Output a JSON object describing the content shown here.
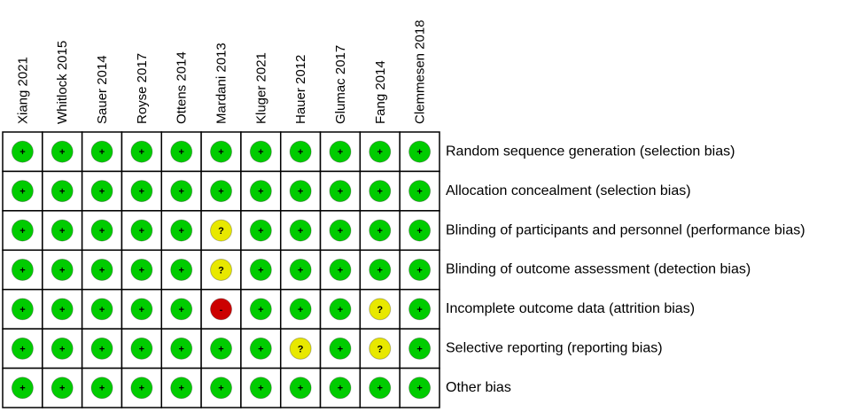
{
  "studies": [
    "Xiang 2021",
    "Whitlock 2015",
    "Sauer 2014",
    "Royse 2017",
    "Ottens 2014",
    "Mardani 2013",
    "Kluger 2021",
    "Hauer 2012",
    "Glumac 2017",
    "Fang 2014",
    "Clemmesen 2018"
  ],
  "domains": [
    "Random sequence generation (selection bias)",
    "Allocation concealment (selection bias)",
    "Blinding of participants and personnel (performance bias)",
    "Blinding of outcome assessment (detection bias)",
    "Incomplete outcome data (attrition bias)",
    "Selective reporting (reporting bias)",
    "Other bias"
  ],
  "judgments": [
    [
      "+",
      "+",
      "+",
      "+",
      "+",
      "+",
      "+",
      "+",
      "+",
      "+",
      "+"
    ],
    [
      "+",
      "+",
      "+",
      "+",
      "+",
      "+",
      "+",
      "+",
      "+",
      "+",
      "+"
    ],
    [
      "+",
      "+",
      "+",
      "+",
      "+",
      "?",
      "+",
      "+",
      "+",
      "+",
      "+"
    ],
    [
      "+",
      "+",
      "+",
      "+",
      "+",
      "?",
      "+",
      "+",
      "+",
      "+",
      "+"
    ],
    [
      "+",
      "+",
      "+",
      "+",
      "+",
      "-",
      "+",
      "+",
      "+",
      "?",
      "+"
    ],
    [
      "+",
      "+",
      "+",
      "+",
      "+",
      "+",
      "+",
      "?",
      "+",
      "?",
      "+"
    ],
    [
      "+",
      "+",
      "+",
      "+",
      "+",
      "+",
      "+",
      "+",
      "+",
      "+",
      "+"
    ]
  ],
  "colors": {
    "+": "#00cc00",
    "?": "#e8e800",
    "-": "#cc0000"
  }
}
